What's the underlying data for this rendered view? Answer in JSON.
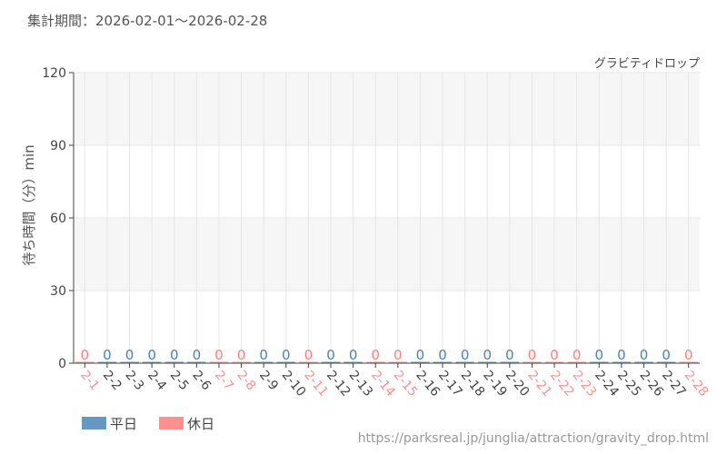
{
  "period_label": "集計期間：2026-02-01～2026-02-28",
  "attraction_name": "グラビティドロップ",
  "source_url": "https://parksreal.jp/junglia/attraction/gravity_drop.html",
  "colors": {
    "weekday": "#6699c2",
    "holiday": "#ff9090",
    "weekday_text": "#4a82b4",
    "holiday_text": "#ff8080",
    "axis_text": "#444444",
    "band": "#f6f6f6"
  },
  "chart_data": {
    "type": "bar",
    "title": "",
    "xlabel": "",
    "ylabel": "待ち時間（分）min",
    "ylim": [
      0,
      120
    ],
    "yticks": [
      0,
      30,
      60,
      90,
      120
    ],
    "grid": true,
    "legend_position": "bottom-left",
    "legend": [
      {
        "name": "平日",
        "key": "weekday"
      },
      {
        "name": "休日",
        "key": "holiday"
      }
    ],
    "categories": [
      "2-1",
      "2-2",
      "2-3",
      "2-4",
      "2-5",
      "2-6",
      "2-7",
      "2-8",
      "2-9",
      "2-10",
      "2-11",
      "2-12",
      "2-13",
      "2-14",
      "2-15",
      "2-16",
      "2-17",
      "2-18",
      "2-19",
      "2-20",
      "2-21",
      "2-22",
      "2-23",
      "2-24",
      "2-25",
      "2-26",
      "2-27",
      "2-28"
    ],
    "day_type": [
      "holiday",
      "weekday",
      "weekday",
      "weekday",
      "weekday",
      "weekday",
      "holiday",
      "holiday",
      "weekday",
      "weekday",
      "holiday",
      "weekday",
      "weekday",
      "holiday",
      "holiday",
      "weekday",
      "weekday",
      "weekday",
      "weekday",
      "weekday",
      "holiday",
      "holiday",
      "holiday",
      "weekday",
      "weekday",
      "weekday",
      "weekday",
      "holiday"
    ],
    "values": [
      0,
      0,
      0,
      0,
      0,
      0,
      0,
      0,
      0,
      0,
      0,
      0,
      0,
      0,
      0,
      0,
      0,
      0,
      0,
      0,
      0,
      0,
      0,
      0,
      0,
      0,
      0,
      0
    ]
  }
}
